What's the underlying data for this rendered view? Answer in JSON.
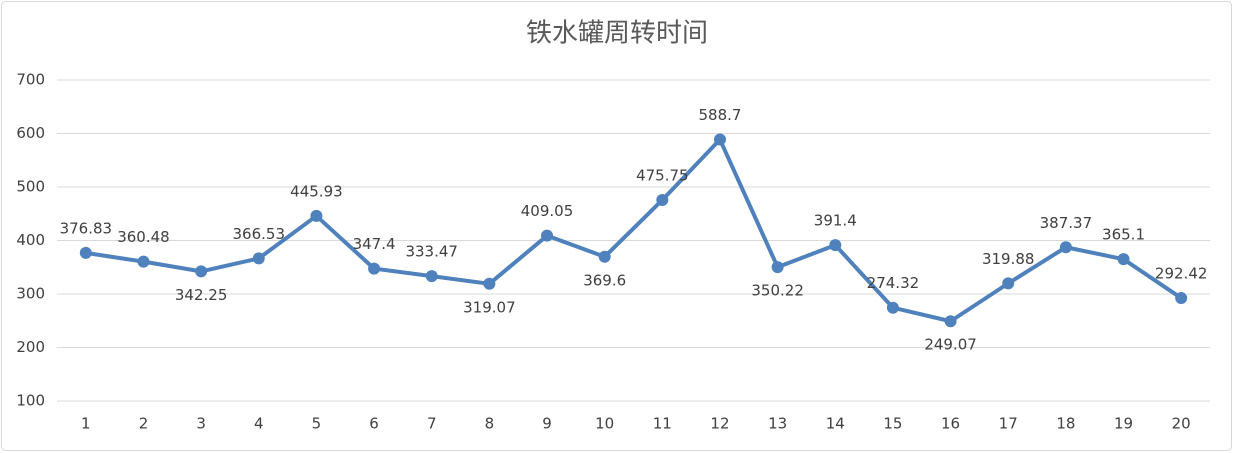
{
  "chart_data": {
    "type": "line",
    "title": "铁水罐周转时间",
    "categories": [
      "1",
      "2",
      "3",
      "4",
      "5",
      "6",
      "7",
      "8",
      "9",
      "10",
      "11",
      "12",
      "13",
      "14",
      "15",
      "16",
      "17",
      "18",
      "19",
      "20"
    ],
    "series": [
      {
        "name": "铁水罐周转时间",
        "color": "#4f81bd",
        "values": [
          376.83,
          360.48,
          342.25,
          366.53,
          445.93,
          347.4,
          333.47,
          319.07,
          409.05,
          369.6,
          475.75,
          588.7,
          350.22,
          391.4,
          274.32,
          249.07,
          319.88,
          387.37,
          365.1,
          292.42
        ]
      }
    ],
    "ylim": [
      100,
      700
    ],
    "yticks": [
      100,
      200,
      300,
      400,
      500,
      600,
      700
    ],
    "grid": true
  }
}
